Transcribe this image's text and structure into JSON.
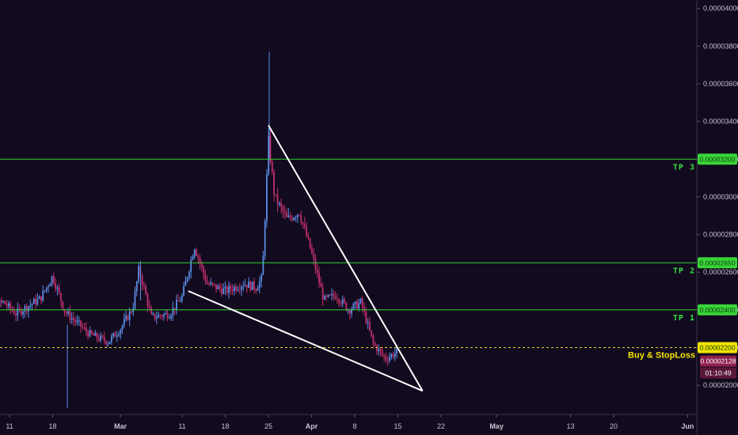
{
  "colors": {
    "background": "#120a1e",
    "bull": "#5b8ee6",
    "bear": "#c0306b",
    "tp_line": "#2fd12f",
    "buy_line": "#e8d62a",
    "wedge": "#ffffff",
    "axis": "#3a3346"
  },
  "chart_data": {
    "type": "candlestick",
    "y_axis": {
      "range": [
        1.845e-05,
        4.045e-05
      ],
      "ticks": [
        "0.00004000",
        "0.00003800",
        "0.00003600",
        "0.00003400",
        "0.00003200",
        "0.00003000",
        "0.00002800",
        "0.00002600",
        "0.00002400",
        "0.00002200",
        "0.00002000"
      ]
    },
    "x_axis": {
      "ticks": [
        {
          "label": "11",
          "date": "2019-02-11"
        },
        {
          "label": "18",
          "date": "2019-02-18"
        },
        {
          "label": "Mar",
          "date": "2019-03-01"
        },
        {
          "label": "11",
          "date": "2019-03-11"
        },
        {
          "label": "18",
          "date": "2019-03-18"
        },
        {
          "label": "25",
          "date": "2019-03-25"
        },
        {
          "label": "Apr",
          "date": "2019-04-01"
        },
        {
          "label": "8",
          "date": "2019-04-08"
        },
        {
          "label": "15",
          "date": "2019-04-15"
        },
        {
          "label": "22",
          "date": "2019-04-22"
        },
        {
          "label": "May",
          "date": "2019-05-01"
        },
        {
          "label": "13",
          "date": "2019-05-13"
        },
        {
          "label": "20",
          "date": "2019-05-20"
        },
        {
          "label": "Jun",
          "date": "2019-06-01"
        }
      ]
    },
    "price_path": [
      {
        "date": "2019-02-05",
        "price": 2.46e-05
      },
      {
        "date": "2019-02-08",
        "price": 2.42e-05
      },
      {
        "date": "2019-02-10",
        "price": 2.44e-05
      },
      {
        "date": "2019-02-12",
        "price": 2.38e-05
      },
      {
        "date": "2019-02-16",
        "price": 2.46e-05
      },
      {
        "date": "2019-02-18",
        "price": 2.58e-05
      },
      {
        "date": "2019-02-20",
        "price": 2.39e-05
      },
      {
        "date": "2019-02-24",
        "price": 2.27e-05
      },
      {
        "date": "2019-02-27",
        "price": 2.23e-05
      },
      {
        "date": "2019-03-01",
        "price": 2.3e-05
      },
      {
        "date": "2019-03-03",
        "price": 2.41e-05
      },
      {
        "date": "2019-03-04",
        "price": 2.62e-05
      },
      {
        "date": "2019-03-06",
        "price": 2.36e-05
      },
      {
        "date": "2019-03-09",
        "price": 2.38e-05
      },
      {
        "date": "2019-03-11",
        "price": 2.47e-05
      },
      {
        "date": "2019-03-13",
        "price": 2.74e-05
      },
      {
        "date": "2019-03-15",
        "price": 2.54e-05
      },
      {
        "date": "2019-03-18",
        "price": 2.5e-05
      },
      {
        "date": "2019-03-21",
        "price": 2.54e-05
      },
      {
        "date": "2019-03-23",
        "price": 2.52e-05
      },
      {
        "date": "2019-03-24",
        "price": 2.57e-05
      },
      {
        "date": "2019-03-25",
        "price": 3.3e-05
      },
      {
        "date": "2019-03-26",
        "price": 3e-05
      },
      {
        "date": "2019-03-28",
        "price": 2.88e-05
      },
      {
        "date": "2019-03-30",
        "price": 2.92e-05
      },
      {
        "date": "2019-04-01",
        "price": 2.7e-05
      },
      {
        "date": "2019-04-03",
        "price": 2.45e-05
      },
      {
        "date": "2019-04-05",
        "price": 2.48e-05
      },
      {
        "date": "2019-04-07",
        "price": 2.4e-05
      },
      {
        "date": "2019-04-09",
        "price": 2.44e-05
      },
      {
        "date": "2019-04-11",
        "price": 2.22e-05
      },
      {
        "date": "2019-04-13",
        "price": 2.14e-05
      },
      {
        "date": "2019-04-15",
        "price": 2.18e-05
      }
    ],
    "levels": [
      {
        "label": "TP 3",
        "price": 3.2e-05,
        "tag": "0.00003200",
        "type": "tp"
      },
      {
        "label": "TP 2",
        "price": 2.65e-05,
        "tag": "0.00002650",
        "type": "tp"
      },
      {
        "label": "TP 1",
        "price": 2.4e-05,
        "tag": "0.00002400",
        "type": "tp"
      },
      {
        "label": "Buy & StopLoss",
        "price": 2.2e-05,
        "tag": "0.00002200",
        "type": "buy"
      }
    ],
    "current_price": {
      "value": "0.00002128",
      "countdown": "01:10:49"
    },
    "wedge": {
      "upper": [
        {
          "date": "2019-03-25",
          "price": 3.38e-05
        },
        {
          "date": "2019-04-19",
          "price": 1.97e-05
        }
      ],
      "lower": [
        {
          "date": "2019-03-12",
          "price": 2.5e-05
        },
        {
          "date": "2019-04-19",
          "price": 1.97e-05
        }
      ]
    }
  }
}
